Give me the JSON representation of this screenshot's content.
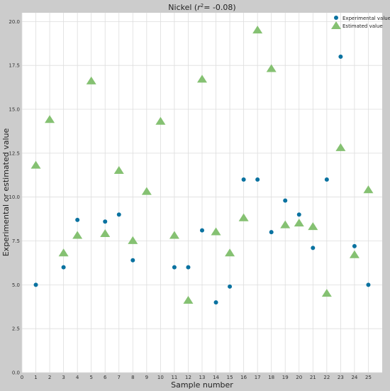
{
  "chart_data": {
    "type": "scatter",
    "title_main": "Nickel (",
    "title_r": "r",
    "title_sup": "2",
    "title_tail": "= -0.08)",
    "xlabel": "Sample number",
    "ylabel": "Experimental or estimated value",
    "xlim": [
      0,
      26
    ],
    "ylim": [
      0,
      20.5
    ],
    "grid": true,
    "legend_position": "top-right",
    "x_ticks": [
      0,
      1,
      2,
      3,
      4,
      5,
      6,
      7,
      8,
      9,
      10,
      11,
      12,
      13,
      14,
      15,
      16,
      17,
      18,
      19,
      20,
      21,
      22,
      23,
      24,
      25
    ],
    "x_tick_labels": [
      "0",
      "1",
      "2",
      "3",
      "4",
      "5",
      "6",
      "7",
      "8",
      "9",
      "10",
      "11",
      "12",
      "13",
      "14",
      "15",
      "16",
      "17",
      "18",
      "19",
      "20",
      "21",
      "22",
      "23",
      "24",
      "25"
    ],
    "y_ticks": [
      0,
      2.5,
      5,
      7.5,
      10,
      12.5,
      15,
      17.5,
      20
    ],
    "y_tick_labels": [
      "0.0",
      "2.5",
      "5.0",
      "7.5",
      "10.0",
      "12.5",
      "15.0",
      "17.5",
      "20.0"
    ],
    "series": [
      {
        "name": "Experimental value",
        "marker": "circle",
        "color": "#0a72a0",
        "x": [
          1,
          3,
          4,
          6,
          7,
          8,
          11,
          12,
          13,
          14,
          15,
          16,
          17,
          18,
          19,
          20,
          21,
          22,
          23,
          24,
          25
        ],
        "y": [
          5.0,
          6.0,
          8.7,
          8.6,
          9.0,
          6.4,
          6.0,
          6.0,
          8.1,
          4.0,
          4.9,
          11.0,
          11.0,
          8.0,
          9.8,
          9.0,
          7.1,
          11.0,
          18.0,
          7.2,
          5.0
        ]
      },
      {
        "name": "Estimated value",
        "marker": "triangle",
        "color": "#85c172",
        "x": [
          1,
          2,
          3,
          4,
          5,
          6,
          7,
          8,
          9,
          10,
          11,
          12,
          13,
          14,
          15,
          16,
          17,
          18,
          19,
          20,
          21,
          22,
          23,
          24,
          25
        ],
        "y": [
          11.8,
          14.4,
          6.8,
          7.8,
          16.6,
          7.9,
          11.5,
          7.5,
          10.3,
          14.3,
          7.8,
          4.1,
          16.7,
          8.0,
          6.8,
          8.8,
          19.5,
          17.3,
          8.4,
          8.5,
          8.3,
          4.5,
          12.8,
          6.7,
          10.4
        ]
      }
    ]
  },
  "colors": {
    "frame": "#cccccc",
    "plot_background": "#ffffff",
    "grid": "#dddddd"
  }
}
